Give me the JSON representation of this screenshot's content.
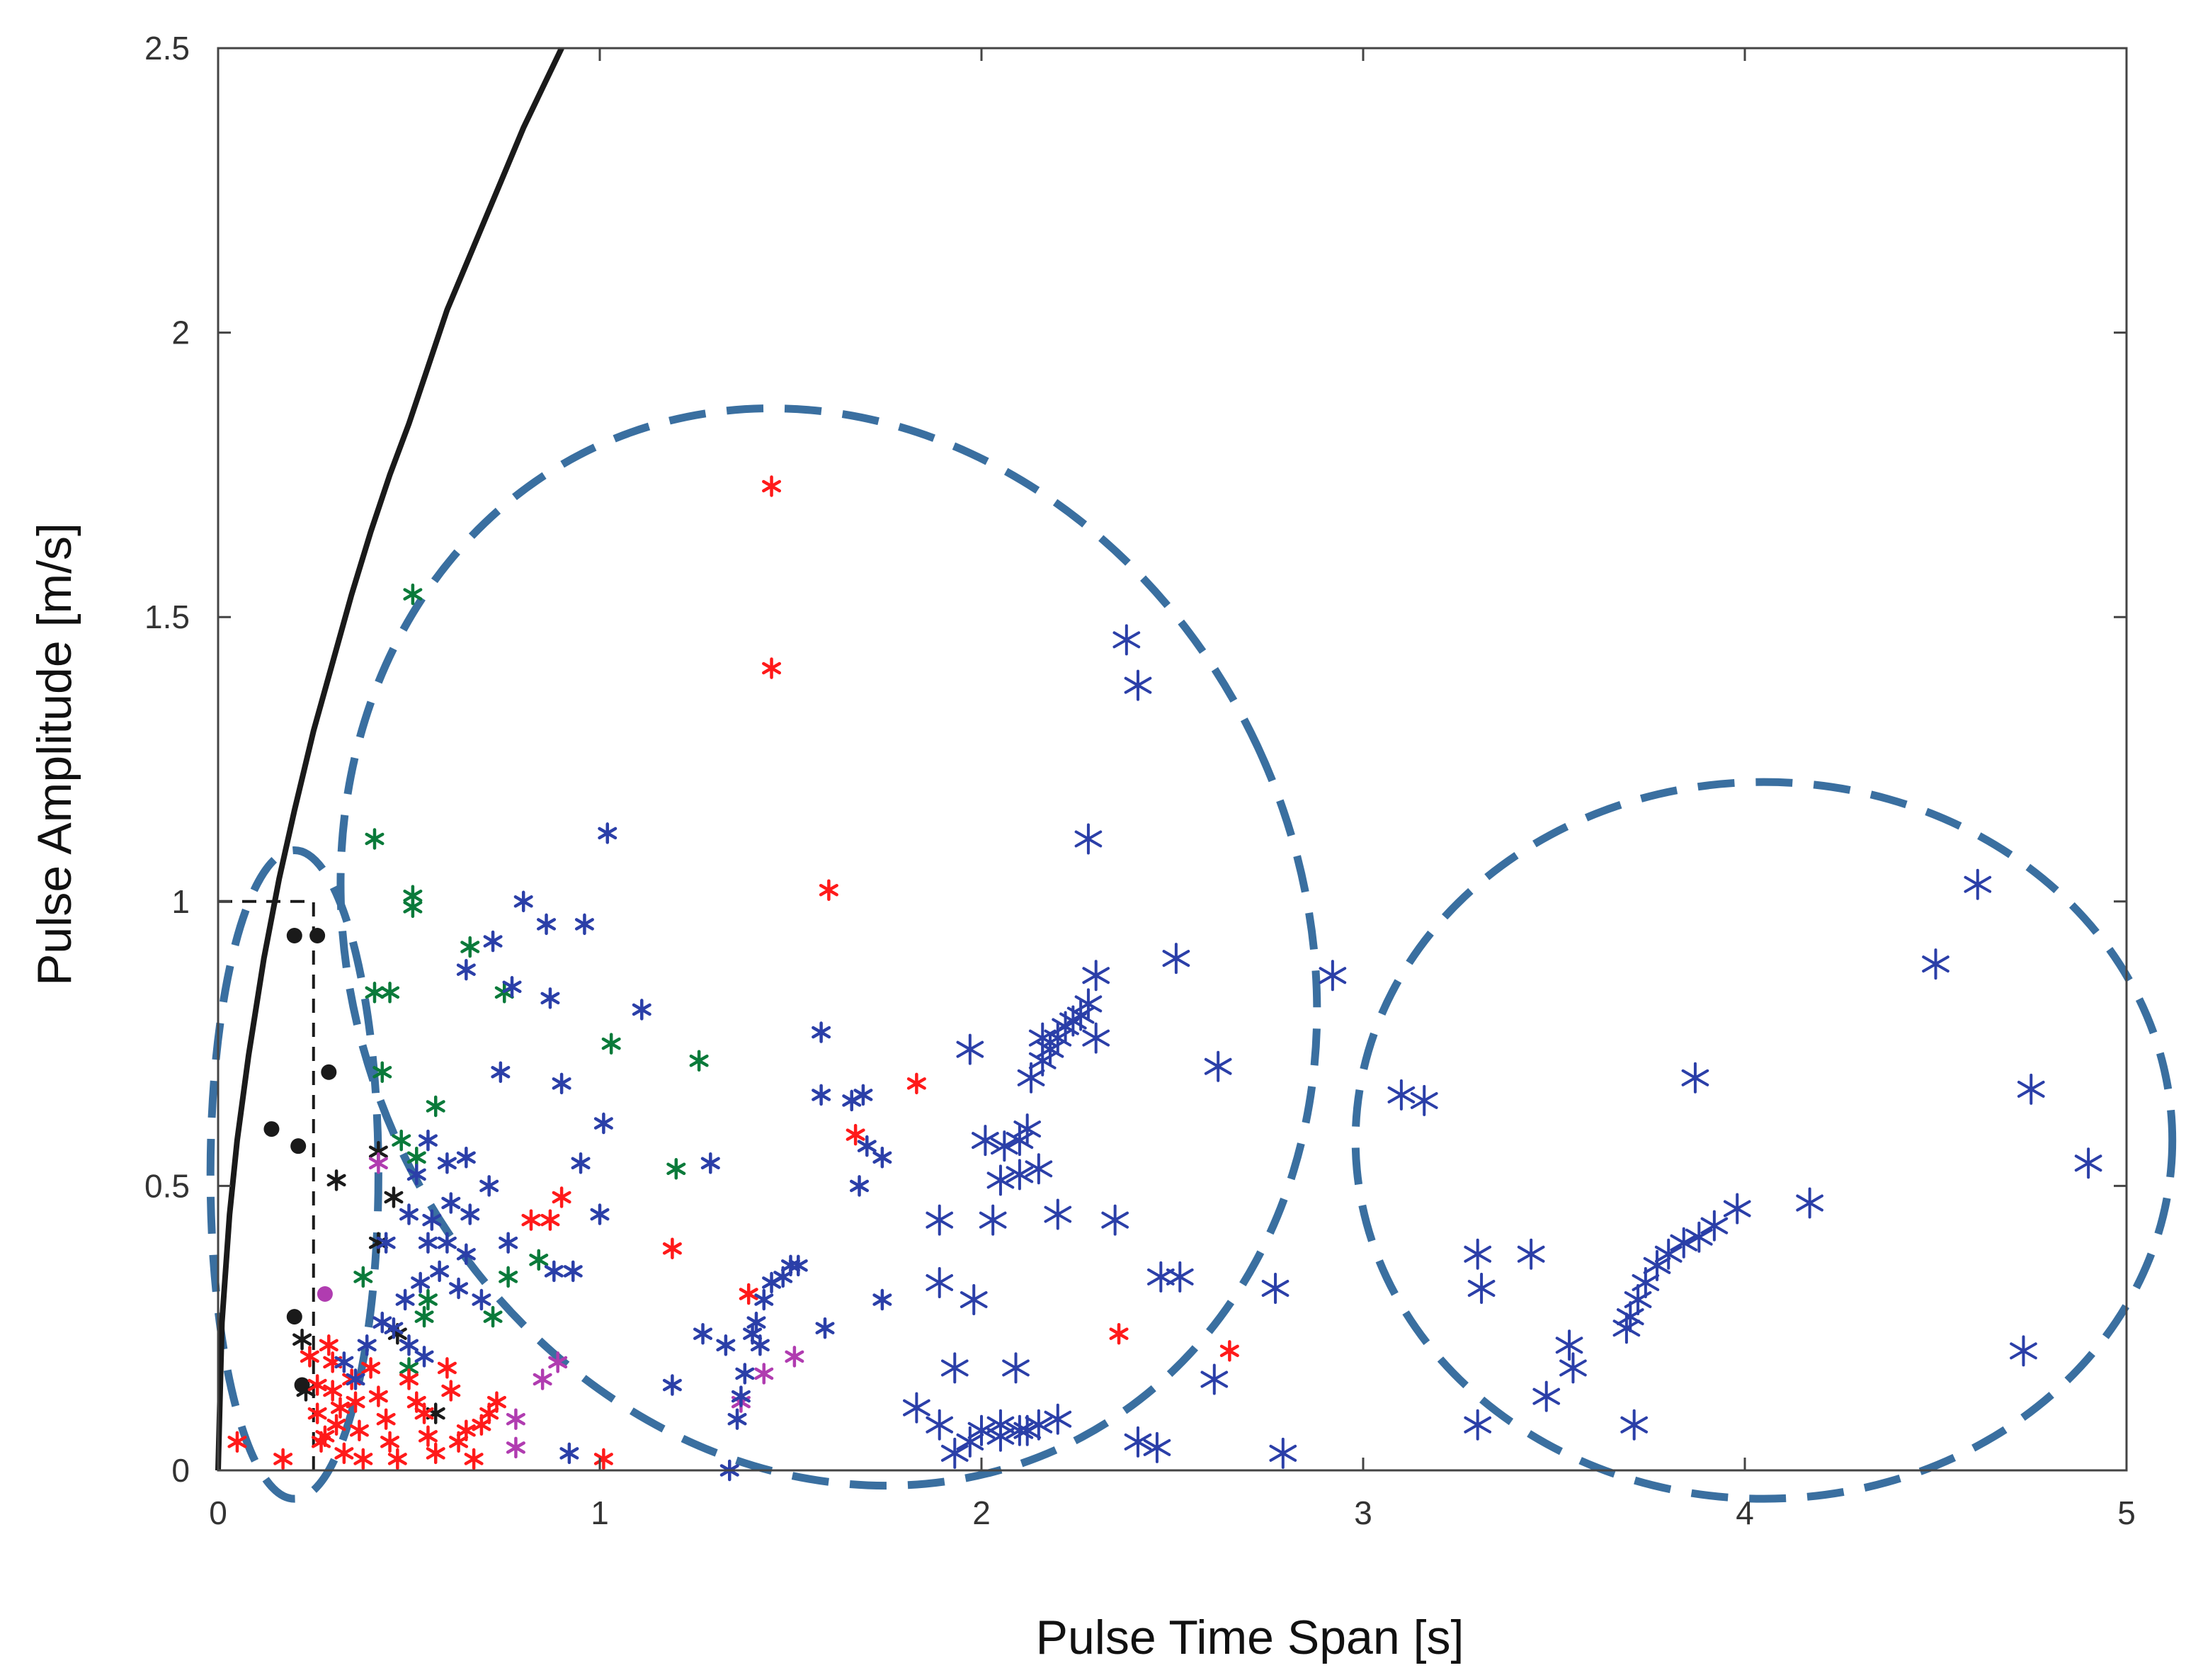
{
  "chart_data": {
    "type": "scatter",
    "title": "",
    "xlabel": "Pulse Time Span [s]",
    "ylabel": "Pulse Amplitude [m/s]",
    "xlim": [
      0,
      5
    ],
    "ylim": [
      0,
      2.5
    ],
    "xticks": [
      0,
      1,
      2,
      3,
      4,
      5
    ],
    "xtick_labels": [
      "0",
      "1",
      "2",
      "3",
      "4",
      "5"
    ],
    "yticks": [
      0,
      0.5,
      1,
      1.5,
      2,
      2.5
    ],
    "ytick_labels": [
      "0",
      "0.5",
      "1",
      "1.5",
      "2",
      "2.5"
    ],
    "grid": false,
    "box": true,
    "colors": {
      "black": "#1a1a1a",
      "red": "#ff1a1a",
      "green": "#0a7a3a",
      "magenta": "#b03cb0",
      "blue": "#2b3fa8",
      "ellipse": "#3a6fa0"
    },
    "curve": {
      "color": "#1a1a1a",
      "style": "solid",
      "points": [
        [
          0,
          0
        ],
        [
          0.01,
          0.26
        ],
        [
          0.03,
          0.45
        ],
        [
          0.05,
          0.58
        ],
        [
          0.08,
          0.73
        ],
        [
          0.12,
          0.9
        ],
        [
          0.16,
          1.04
        ],
        [
          0.2,
          1.16
        ],
        [
          0.25,
          1.3
        ],
        [
          0.3,
          1.42
        ],
        [
          0.35,
          1.54
        ],
        [
          0.4,
          1.65
        ],
        [
          0.45,
          1.75
        ],
        [
          0.5,
          1.84
        ],
        [
          0.55,
          1.94
        ],
        [
          0.6,
          2.04
        ],
        [
          0.65,
          2.12
        ],
        [
          0.7,
          2.2
        ],
        [
          0.75,
          2.28
        ],
        [
          0.8,
          2.36
        ],
        [
          0.85,
          2.43
        ],
        [
          0.9,
          2.5
        ]
      ]
    },
    "threshold_lines": [
      {
        "style": "dashed",
        "color": "#1a1a1a",
        "points": [
          [
            0.25,
            0
          ],
          [
            0.25,
            1
          ]
        ]
      },
      {
        "style": "dashed",
        "color": "#1a1a1a",
        "points": [
          [
            0,
            1
          ],
          [
            0.25,
            1
          ]
        ]
      }
    ],
    "ellipses": [
      {
        "cx": 0.2,
        "cy": 0.52,
        "rx": 0.22,
        "ry": 0.57,
        "color": "#3a6fa0",
        "style": "dashed"
      },
      {
        "cx": 1.6,
        "cy": 0.92,
        "rx": 1.24,
        "ry": 0.97,
        "color": "#3a6fa0",
        "style": "dashed",
        "rotation_deg": -25
      },
      {
        "cx": 4.05,
        "cy": 0.58,
        "rx": 1.07,
        "ry": 0.63,
        "color": "#3a6fa0",
        "style": "dashed"
      }
    ],
    "series": [
      {
        "color_key": "black",
        "marker": "dot",
        "points": [
          [
            0.2,
            0.94
          ],
          [
            0.26,
            0.94
          ],
          [
            0.29,
            0.7
          ],
          [
            0.14,
            0.6
          ],
          [
            0.21,
            0.57
          ],
          [
            0.2,
            0.27
          ],
          [
            0.22,
            0.15
          ]
        ]
      },
      {
        "color_key": "magenta",
        "marker": "dot",
        "points": [
          [
            0.28,
            0.31
          ]
        ]
      },
      {
        "color_key": "black",
        "marker": "star",
        "points": [
          [
            0.31,
            0.51
          ],
          [
            0.42,
            0.56
          ],
          [
            0.46,
            0.48
          ],
          [
            0.42,
            0.4
          ],
          [
            0.47,
            0.24
          ],
          [
            0.22,
            0.23
          ],
          [
            0.23,
            0.14
          ],
          [
            0.57,
            0.1
          ]
        ]
      },
      {
        "color_key": "green",
        "marker": "star",
        "points": [
          [
            0.51,
            1.54
          ],
          [
            0.41,
            1.11
          ],
          [
            0.51,
            1.01
          ],
          [
            0.51,
            0.99
          ],
          [
            0.66,
            0.92
          ],
          [
            0.41,
            0.84
          ],
          [
            0.45,
            0.84
          ],
          [
            0.75,
            0.84
          ],
          [
            0.43,
            0.7
          ],
          [
            0.57,
            0.64
          ],
          [
            1.03,
            0.75
          ],
          [
            1.26,
            0.72
          ],
          [
            0.48,
            0.58
          ],
          [
            0.52,
            0.55
          ],
          [
            1.2,
            0.53
          ],
          [
            0.84,
            0.37
          ],
          [
            0.76,
            0.34
          ],
          [
            0.38,
            0.34
          ],
          [
            0.55,
            0.3
          ],
          [
            0.54,
            0.27
          ],
          [
            0.72,
            0.27
          ],
          [
            0.5,
            0.18
          ]
        ]
      },
      {
        "color_key": "red",
        "marker": "star",
        "points": [
          [
            1.45,
            1.73
          ],
          [
            1.45,
            1.41
          ],
          [
            1.6,
            1.02
          ],
          [
            1.83,
            0.68
          ],
          [
            1.67,
            0.59
          ],
          [
            0.9,
            0.48
          ],
          [
            0.82,
            0.44
          ],
          [
            0.87,
            0.44
          ],
          [
            1.19,
            0.39
          ],
          [
            1.39,
            0.31
          ],
          [
            2.36,
            0.24
          ],
          [
            2.65,
            0.21
          ],
          [
            0.05,
            0.05
          ],
          [
            0.17,
            0.02
          ],
          [
            0.24,
            0.2
          ],
          [
            0.26,
            0.1
          ],
          [
            0.27,
            0.05
          ],
          [
            0.29,
            0.22
          ],
          [
            0.3,
            0.14
          ],
          [
            0.31,
            0.08
          ],
          [
            0.33,
            0.03
          ],
          [
            0.35,
            0.16
          ],
          [
            0.36,
            0.12
          ],
          [
            0.37,
            0.07
          ],
          [
            0.38,
            0.02
          ],
          [
            0.4,
            0.18
          ],
          [
            0.42,
            0.13
          ],
          [
            0.44,
            0.09
          ],
          [
            0.45,
            0.05
          ],
          [
            0.47,
            0.02
          ],
          [
            0.5,
            0.16
          ],
          [
            0.52,
            0.12
          ],
          [
            0.54,
            0.1
          ],
          [
            0.55,
            0.06
          ],
          [
            0.57,
            0.03
          ],
          [
            0.6,
            0.18
          ],
          [
            0.61,
            0.14
          ],
          [
            0.63,
            0.05
          ],
          [
            0.65,
            0.07
          ],
          [
            0.67,
            0.02
          ],
          [
            0.69,
            0.08
          ],
          [
            0.71,
            0.1
          ],
          [
            0.73,
            0.12
          ],
          [
            0.26,
            0.15
          ],
          [
            0.28,
            0.06
          ],
          [
            0.3,
            0.19
          ],
          [
            0.32,
            0.11
          ],
          [
            1.01,
            0.02
          ]
        ]
      },
      {
        "color_key": "magenta",
        "marker": "star",
        "points": [
          [
            0.42,
            0.54
          ],
          [
            0.85,
            0.16
          ],
          [
            0.89,
            0.19
          ],
          [
            1.51,
            0.2
          ],
          [
            1.43,
            0.17
          ],
          [
            1.37,
            0.12
          ],
          [
            0.78,
            0.09
          ],
          [
            0.78,
            0.04
          ]
        ]
      },
      {
        "color_key": "blue",
        "marker": "star",
        "points": [
          [
            2.38,
            1.46
          ],
          [
            2.41,
            1.38
          ],
          [
            1.02,
            1.12
          ],
          [
            2.28,
            1.11
          ],
          [
            0.8,
            1.0
          ],
          [
            0.86,
            0.96
          ],
          [
            0.96,
            0.96
          ],
          [
            0.72,
            0.93
          ],
          [
            0.65,
            0.88
          ],
          [
            0.77,
            0.85
          ],
          [
            0.87,
            0.83
          ],
          [
            2.51,
            0.9
          ],
          [
            2.92,
            0.87
          ],
          [
            2.3,
            0.87
          ],
          [
            1.11,
            0.81
          ],
          [
            1.58,
            0.77
          ],
          [
            1.97,
            0.74
          ],
          [
            0.74,
            0.7
          ],
          [
            0.9,
            0.68
          ],
          [
            2.62,
            0.71
          ],
          [
            1.58,
            0.66
          ],
          [
            1.66,
            0.65
          ],
          [
            1.69,
            0.66
          ],
          [
            1.01,
            0.61
          ],
          [
            0.55,
            0.58
          ],
          [
            0.52,
            0.52
          ],
          [
            0.6,
            0.54
          ],
          [
            0.65,
            0.55
          ],
          [
            0.95,
            0.54
          ],
          [
            1.7,
            0.57
          ],
          [
            1.74,
            0.55
          ],
          [
            1.29,
            0.54
          ],
          [
            1.68,
            0.5
          ],
          [
            0.71,
            0.5
          ],
          [
            0.61,
            0.47
          ],
          [
            0.56,
            0.44
          ],
          [
            0.5,
            0.45
          ],
          [
            0.66,
            0.45
          ],
          [
            1.0,
            0.45
          ],
          [
            1.89,
            0.44
          ],
          [
            2.03,
            0.44
          ],
          [
            2.2,
            0.45
          ],
          [
            2.35,
            0.44
          ],
          [
            0.44,
            0.4
          ],
          [
            0.55,
            0.4
          ],
          [
            0.6,
            0.4
          ],
          [
            0.65,
            0.38
          ],
          [
            0.76,
            0.4
          ],
          [
            0.88,
            0.35
          ],
          [
            0.93,
            0.35
          ],
          [
            1.89,
            0.33
          ],
          [
            1.74,
            0.3
          ],
          [
            1.98,
            0.3
          ],
          [
            2.47,
            0.34
          ],
          [
            2.52,
            0.34
          ],
          [
            2.77,
            0.32
          ],
          [
            1.27,
            0.24
          ],
          [
            1.33,
            0.22
          ],
          [
            1.59,
            0.25
          ],
          [
            1.19,
            0.15
          ],
          [
            1.41,
            0.26
          ],
          [
            1.43,
            0.3
          ],
          [
            1.45,
            0.33
          ],
          [
            1.48,
            0.34
          ],
          [
            1.5,
            0.36
          ],
          [
            1.52,
            0.36
          ],
          [
            1.4,
            0.24
          ],
          [
            1.42,
            0.22
          ],
          [
            1.38,
            0.17
          ],
          [
            1.37,
            0.13
          ],
          [
            1.36,
            0.09
          ],
          [
            1.34,
            0.0
          ],
          [
            0.46,
            0.25
          ],
          [
            0.5,
            0.22
          ],
          [
            0.54,
            0.2
          ],
          [
            0.49,
            0.3
          ],
          [
            0.53,
            0.33
          ],
          [
            0.58,
            0.35
          ],
          [
            0.63,
            0.32
          ],
          [
            0.69,
            0.3
          ],
          [
            0.33,
            0.19
          ],
          [
            0.36,
            0.16
          ],
          [
            0.39,
            0.22
          ],
          [
            0.43,
            0.26
          ],
          [
            0.92,
            0.03
          ],
          [
            2.01,
            0.58
          ],
          [
            2.06,
            0.57
          ],
          [
            2.1,
            0.58
          ],
          [
            2.12,
            0.6
          ],
          [
            2.15,
            0.53
          ],
          [
            2.1,
            0.52
          ],
          [
            2.05,
            0.51
          ],
          [
            2.13,
            0.69
          ],
          [
            2.16,
            0.72
          ],
          [
            2.18,
            0.74
          ],
          [
            2.2,
            0.76
          ],
          [
            2.22,
            0.78
          ],
          [
            2.24,
            0.79
          ],
          [
            2.26,
            0.8
          ],
          [
            2.28,
            0.82
          ],
          [
            2.3,
            0.76
          ],
          [
            2.16,
            0.76
          ],
          [
            2.09,
            0.18
          ],
          [
            1.93,
            0.18
          ],
          [
            1.83,
            0.11
          ],
          [
            1.89,
            0.08
          ],
          [
            1.93,
            0.03
          ],
          [
            1.97,
            0.05
          ],
          [
            2.0,
            0.07
          ],
          [
            2.05,
            0.06
          ],
          [
            2.1,
            0.07
          ],
          [
            2.15,
            0.08
          ],
          [
            2.2,
            0.09
          ],
          [
            2.05,
            0.08
          ],
          [
            2.12,
            0.07
          ],
          [
            2.61,
            0.16
          ],
          [
            2.41,
            0.05
          ],
          [
            2.46,
            0.04
          ],
          [
            2.79,
            0.03
          ],
          [
            3.1,
            0.66
          ],
          [
            3.16,
            0.65
          ],
          [
            3.87,
            0.69
          ],
          [
            4.61,
            1.03
          ],
          [
            4.5,
            0.89
          ],
          [
            4.75,
            0.67
          ],
          [
            4.9,
            0.54
          ],
          [
            4.17,
            0.47
          ],
          [
            3.98,
            0.46
          ],
          [
            3.92,
            0.43
          ],
          [
            3.88,
            0.41
          ],
          [
            3.84,
            0.4
          ],
          [
            3.8,
            0.38
          ],
          [
            3.77,
            0.36
          ],
          [
            3.74,
            0.33
          ],
          [
            3.72,
            0.3
          ],
          [
            3.7,
            0.27
          ],
          [
            3.69,
            0.25
          ],
          [
            3.3,
            0.38
          ],
          [
            3.31,
            0.32
          ],
          [
            3.44,
            0.38
          ],
          [
            3.54,
            0.22
          ],
          [
            3.55,
            0.18
          ],
          [
            3.48,
            0.13
          ],
          [
            3.3,
            0.08
          ],
          [
            3.71,
            0.08
          ],
          [
            4.73,
            0.21
          ]
        ]
      }
    ]
  }
}
